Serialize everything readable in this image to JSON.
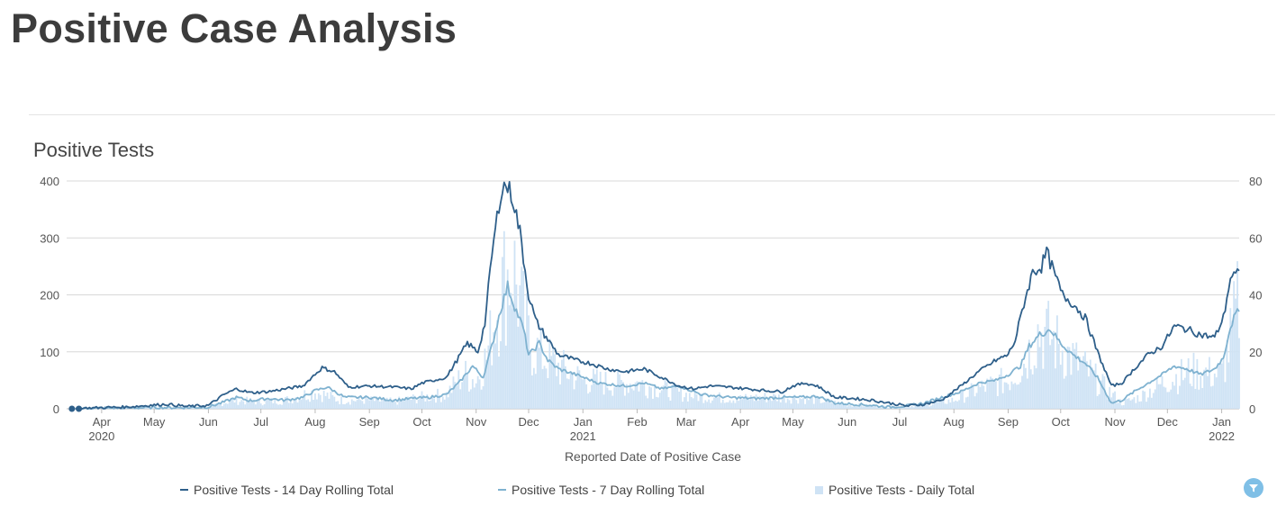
{
  "page": {
    "title": "Positive Case Analysis"
  },
  "colors": {
    "rolling14": "#2e5f8a",
    "rolling7": "#7fb2d0",
    "daily": "#cfe3f5",
    "grid": "#d8d8d8",
    "filter_button": "#7fbfe6"
  },
  "filter_button": {
    "icon": "filter-icon"
  },
  "chart_data": {
    "type": "line",
    "title": "Positive Tests",
    "xlabel": "Reported Date of Positive Case",
    "x_range": [
      "2020-03-12",
      "2022-01-11"
    ],
    "y_left": {
      "ticks": [
        0,
        100,
        200,
        300,
        400
      ],
      "range": [
        0,
        400
      ]
    },
    "y_right": {
      "ticks": [
        0,
        20,
        40,
        60,
        80
      ],
      "range": [
        0,
        80
      ]
    },
    "grid": true,
    "legend_position": "bottom",
    "x_ticks": [
      {
        "date": "2020-04-01",
        "label": "Apr",
        "year": "2020"
      },
      {
        "date": "2020-05-01",
        "label": "May",
        "year": ""
      },
      {
        "date": "2020-06-01",
        "label": "Jun",
        "year": ""
      },
      {
        "date": "2020-07-01",
        "label": "Jul",
        "year": ""
      },
      {
        "date": "2020-08-01",
        "label": "Aug",
        "year": ""
      },
      {
        "date": "2020-09-01",
        "label": "Sep",
        "year": ""
      },
      {
        "date": "2020-10-01",
        "label": "Oct",
        "year": ""
      },
      {
        "date": "2020-11-01",
        "label": "Nov",
        "year": ""
      },
      {
        "date": "2020-12-01",
        "label": "Dec",
        "year": ""
      },
      {
        "date": "2021-01-01",
        "label": "Jan",
        "year": "2021"
      },
      {
        "date": "2021-02-01",
        "label": "Feb",
        "year": ""
      },
      {
        "date": "2021-03-01",
        "label": "Mar",
        "year": ""
      },
      {
        "date": "2021-04-01",
        "label": "Apr",
        "year": ""
      },
      {
        "date": "2021-05-01",
        "label": "May",
        "year": ""
      },
      {
        "date": "2021-06-01",
        "label": "Jun",
        "year": ""
      },
      {
        "date": "2021-07-01",
        "label": "Jul",
        "year": ""
      },
      {
        "date": "2021-08-01",
        "label": "Aug",
        "year": ""
      },
      {
        "date": "2021-09-01",
        "label": "Sep",
        "year": ""
      },
      {
        "date": "2021-10-01",
        "label": "Oct",
        "year": ""
      },
      {
        "date": "2021-11-01",
        "label": "Nov",
        "year": ""
      },
      {
        "date": "2021-12-01",
        "label": "Dec",
        "year": ""
      },
      {
        "date": "2022-01-01",
        "label": "Jan",
        "year": "2022"
      }
    ],
    "series": [
      {
        "name": "Positive Tests - 14 Day Rolling Total",
        "axis": "left",
        "x": [
          "2020-03-17",
          "2020-03-23",
          "2020-04-01",
          "2020-04-15",
          "2020-04-28",
          "2020-05-08",
          "2020-05-20",
          "2020-06-01",
          "2020-06-10",
          "2020-06-17",
          "2020-06-25",
          "2020-07-05",
          "2020-07-15",
          "2020-07-25",
          "2020-07-30",
          "2020-08-05",
          "2020-08-12",
          "2020-08-20",
          "2020-09-01",
          "2020-09-15",
          "2020-09-25",
          "2020-10-01",
          "2020-10-08",
          "2020-10-15",
          "2020-10-22",
          "2020-10-27",
          "2020-11-02",
          "2020-11-06",
          "2020-11-10",
          "2020-11-15",
          "2020-11-18",
          "2020-11-22",
          "2020-11-26",
          "2020-12-01",
          "2020-12-05",
          "2020-12-10",
          "2020-12-18",
          "2020-12-28",
          "2021-01-05",
          "2021-01-15",
          "2021-01-25",
          "2021-02-05",
          "2021-02-15",
          "2021-02-25",
          "2021-03-05",
          "2021-03-15",
          "2021-03-25",
          "2021-04-05",
          "2021-04-15",
          "2021-04-25",
          "2021-05-01",
          "2021-05-08",
          "2021-05-15",
          "2021-05-25",
          "2021-06-05",
          "2021-06-15",
          "2021-06-25",
          "2021-07-05",
          "2021-07-15",
          "2021-07-25",
          "2021-08-05",
          "2021-08-15",
          "2021-08-25",
          "2021-09-01",
          "2021-09-05",
          "2021-09-10",
          "2021-09-15",
          "2021-09-20",
          "2021-09-23",
          "2021-09-27",
          "2021-10-02",
          "2021-10-08",
          "2021-10-15",
          "2021-10-22",
          "2021-10-30",
          "2021-11-05",
          "2021-11-12",
          "2021-11-20",
          "2021-11-28",
          "2021-12-05",
          "2021-12-12",
          "2021-12-20",
          "2021-12-28",
          "2022-01-02",
          "2022-01-06",
          "2022-01-09",
          "2022-01-11"
        ],
        "values": [
          0,
          1,
          2,
          3,
          6,
          8,
          4,
          6,
          25,
          35,
          28,
          30,
          35,
          40,
          55,
          72,
          65,
          38,
          40,
          38,
          35,
          45,
          50,
          55,
          90,
          115,
          100,
          150,
          270,
          380,
          395,
          370,
          310,
          200,
          155,
          130,
          95,
          85,
          80,
          70,
          65,
          70,
          55,
          40,
          35,
          40,
          38,
          35,
          32,
          30,
          40,
          45,
          40,
          20,
          18,
          15,
          10,
          5,
          8,
          15,
          40,
          65,
          85,
          95,
          120,
          185,
          240,
          250,
          275,
          240,
          200,
          185,
          160,
          100,
          40,
          45,
          70,
          95,
          110,
          145,
          140,
          130,
          125,
          160,
          230,
          235,
          235
        ]
      },
      {
        "name": "Positive Tests - 7 Day Rolling Total",
        "axis": "left",
        "x": [
          "2020-03-17",
          "2020-04-01",
          "2020-04-28",
          "2020-05-20",
          "2020-06-01",
          "2020-06-10",
          "2020-06-17",
          "2020-06-25",
          "2020-07-05",
          "2020-07-15",
          "2020-07-25",
          "2020-08-01",
          "2020-08-08",
          "2020-08-18",
          "2020-09-01",
          "2020-09-15",
          "2020-09-25",
          "2020-10-05",
          "2020-10-15",
          "2020-10-22",
          "2020-10-30",
          "2020-11-05",
          "2020-11-10",
          "2020-11-15",
          "2020-11-19",
          "2020-11-23",
          "2020-11-28",
          "2020-12-01",
          "2020-12-03",
          "2020-12-07",
          "2020-12-12",
          "2020-12-18",
          "2020-12-28",
          "2021-01-10",
          "2021-01-25",
          "2021-02-05",
          "2021-02-15",
          "2021-02-25",
          "2021-03-10",
          "2021-03-25",
          "2021-04-10",
          "2021-04-25",
          "2021-05-05",
          "2021-05-15",
          "2021-05-25",
          "2021-06-05",
          "2021-06-15",
          "2021-06-25",
          "2021-07-05",
          "2021-07-15",
          "2021-07-25",
          "2021-08-05",
          "2021-08-15",
          "2021-08-25",
          "2021-09-01",
          "2021-09-08",
          "2021-09-13",
          "2021-09-19",
          "2021-09-25",
          "2021-10-01",
          "2021-10-08",
          "2021-10-15",
          "2021-10-22",
          "2021-10-30",
          "2021-11-05",
          "2021-11-12",
          "2021-11-20",
          "2021-11-28",
          "2021-12-05",
          "2021-12-12",
          "2021-12-20",
          "2021-12-28",
          "2022-01-02",
          "2022-01-06",
          "2022-01-09",
          "2022-01-11"
        ],
        "values": [
          0,
          1,
          2,
          2,
          3,
          12,
          20,
          14,
          18,
          15,
          20,
          32,
          38,
          20,
          20,
          15,
          18,
          20,
          25,
          45,
          75,
          55,
          110,
          175,
          215,
          180,
          140,
          95,
          100,
          115,
          85,
          70,
          60,
          45,
          40,
          45,
          35,
          40,
          25,
          20,
          18,
          20,
          20,
          22,
          10,
          8,
          6,
          3,
          5,
          10,
          20,
          30,
          45,
          50,
          60,
          75,
          110,
          130,
          140,
          115,
          95,
          80,
          55,
          10,
          15,
          30,
          45,
          60,
          75,
          70,
          60,
          70,
          90,
          145,
          165,
          170
        ]
      },
      {
        "name": "Positive Tests - Daily Total",
        "axis": "right",
        "type": "bar",
        "x": [
          "2020-03-20",
          "2020-04-01",
          "2020-04-15",
          "2020-05-01",
          "2020-05-15",
          "2020-06-01",
          "2020-06-15",
          "2020-07-01",
          "2020-07-15",
          "2020-08-01",
          "2020-08-15",
          "2020-09-01",
          "2020-09-15",
          "2020-10-01",
          "2020-10-15",
          "2020-10-25",
          "2020-11-01",
          "2020-11-07",
          "2020-11-12",
          "2020-11-17",
          "2020-11-22",
          "2020-11-27",
          "2020-12-02",
          "2020-12-10",
          "2020-12-20",
          "2021-01-01",
          "2021-01-15",
          "2021-02-01",
          "2021-02-15",
          "2021-03-01",
          "2021-03-15",
          "2021-04-01",
          "2021-04-15",
          "2021-05-01",
          "2021-05-15",
          "2021-06-01",
          "2021-06-15",
          "2021-07-01",
          "2021-07-15",
          "2021-08-01",
          "2021-08-15",
          "2021-09-01",
          "2021-09-10",
          "2021-09-18",
          "2021-09-25",
          "2021-10-05",
          "2021-10-15",
          "2021-10-25",
          "2021-11-05",
          "2021-11-15",
          "2021-12-01",
          "2021-12-15",
          "2022-01-01",
          "2022-01-06",
          "2022-01-11"
        ],
        "values": [
          0,
          0.3,
          0.4,
          0.6,
          0.5,
          0.6,
          3,
          2.5,
          3,
          6,
          3,
          3,
          2.5,
          4,
          5,
          12,
          10,
          18,
          33,
          45,
          50,
          35,
          22,
          18,
          14,
          10,
          9,
          9,
          7,
          5,
          4,
          3.5,
          4,
          4,
          3,
          1.5,
          1,
          0.5,
          1.5,
          3,
          7,
          10,
          16,
          27,
          25,
          19,
          14,
          8,
          2,
          4,
          10,
          13,
          12,
          24,
          38
        ]
      }
    ]
  }
}
